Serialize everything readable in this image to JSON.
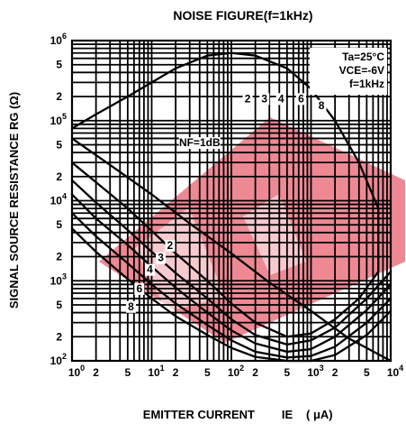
{
  "chart_data": {
    "type": "line",
    "title": "NOISE FIGURE(f=1kHz)",
    "xlabel": "EMITTER CURRENT",
    "xlabel_symbol": "IE",
    "xlabel_unit": "( μA)",
    "ylabel": "SIGNAL SOURCE RESISTANCE RG (Ω)",
    "x_scale": "log",
    "y_scale": "log",
    "xlim": [
      1,
      10000
    ],
    "ylim": [
      100,
      1000000
    ],
    "grid": true,
    "x_tick_labels": [
      {
        "v": 1,
        "base": "10",
        "exp": "0"
      },
      {
        "v": 2,
        "base": "2",
        "exp": ""
      },
      {
        "v": 5,
        "base": "5",
        "exp": ""
      },
      {
        "v": 10,
        "base": "10",
        "exp": "1"
      },
      {
        "v": 20,
        "base": "2",
        "exp": ""
      },
      {
        "v": 50,
        "base": "5",
        "exp": ""
      },
      {
        "v": 100,
        "base": "10",
        "exp": "2"
      },
      {
        "v": 200,
        "base": "2",
        "exp": ""
      },
      {
        "v": 500,
        "base": "5",
        "exp": ""
      },
      {
        "v": 1000,
        "base": "10",
        "exp": "3"
      },
      {
        "v": 2000,
        "base": "2",
        "exp": ""
      },
      {
        "v": 5000,
        "base": "5",
        "exp": ""
      },
      {
        "v": 10000,
        "base": "10",
        "exp": "4"
      }
    ],
    "y_tick_labels": [
      {
        "v": 1000000,
        "base": "10",
        "exp": "6"
      },
      {
        "v": 500000,
        "base": "5",
        "exp": ""
      },
      {
        "v": 200000,
        "base": "2",
        "exp": ""
      },
      {
        "v": 100000,
        "base": "10",
        "exp": "5"
      },
      {
        "v": 50000,
        "base": "5",
        "exp": ""
      },
      {
        "v": 20000,
        "base": "2",
        "exp": ""
      },
      {
        "v": 10000,
        "base": "10",
        "exp": "4"
      },
      {
        "v": 5000,
        "base": "5",
        "exp": ""
      },
      {
        "v": 2000,
        "base": "2",
        "exp": ""
      },
      {
        "v": 1000,
        "base": "10",
        "exp": "3"
      },
      {
        "v": 500,
        "base": "5",
        "exp": ""
      },
      {
        "v": 200,
        "base": "2",
        "exp": ""
      },
      {
        "v": 100,
        "base": "10",
        "exp": "2"
      }
    ],
    "conditions": [
      "Ta=25°C",
      "VCE=-6V",
      "f=1kHz"
    ],
    "series": [
      {
        "name": "NF=1dB",
        "x": [
          1,
          3,
          10,
          30,
          100,
          300,
          1000,
          3000,
          10000
        ],
        "y": [
          60000,
          28000,
          12000,
          5200,
          2200,
          950,
          420,
          190,
          100
        ]
      },
      {
        "name": "2",
        "x": [
          1,
          2,
          5,
          10,
          20,
          50,
          100,
          200,
          500,
          1000,
          2000,
          4000,
          7000,
          7000,
          4000,
          2000,
          1000,
          500,
          200,
          100,
          50,
          20,
          10,
          5,
          2,
          1
        ],
        "y": [
          30000,
          17000,
          8000,
          4200,
          2200,
          1000,
          520,
          300,
          200,
          220,
          330,
          600,
          1300,
          8000,
          30000,
          100000,
          250000,
          450000,
          650000,
          700000,
          650000,
          450000,
          300000,
          200000,
          120000,
          80000
        ]
      },
      {
        "name": "3",
        "x": [
          1,
          2,
          5,
          10,
          20,
          50,
          100,
          200,
          500,
          1000,
          2000,
          5000,
          10000
        ],
        "y": [
          18000,
          9500,
          4300,
          2300,
          1250,
          600,
          330,
          210,
          160,
          180,
          260,
          600,
          1300
        ]
      },
      {
        "name": "4",
        "x": [
          1,
          2,
          5,
          10,
          20,
          50,
          100,
          200,
          500,
          1000,
          2000,
          5000,
          10000
        ],
        "y": [
          12000,
          6000,
          2800,
          1500,
          820,
          400,
          240,
          165,
          130,
          140,
          200,
          430,
          900
        ]
      },
      {
        "name": "6",
        "x": [
          1,
          2,
          5,
          10,
          20,
          50,
          100,
          200,
          500,
          1000,
          2000,
          5000,
          10000
        ],
        "y": [
          7000,
          3600,
          1650,
          900,
          520,
          280,
          180,
          130,
          110,
          115,
          150,
          300,
          600
        ]
      },
      {
        "name": "8",
        "x": [
          1,
          2,
          5,
          10,
          20,
          50,
          100,
          200,
          500,
          1000,
          2000,
          5000,
          10000
        ],
        "y": [
          4500,
          2300,
          1050,
          600,
          360,
          210,
          145,
          112,
          100,
          100,
          118,
          210,
          420
        ]
      }
    ],
    "curve_labels": [
      {
        "text": "NF=1dB",
        "x": 40,
        "y": 48000
      },
      {
        "text": "2",
        "x": 17,
        "y": 2500
      },
      {
        "text": "3",
        "x": 13,
        "y": 1750
      },
      {
        "text": "4",
        "x": 9.5,
        "y": 1250
      },
      {
        "text": "6",
        "x": 7,
        "y": 720
      },
      {
        "text": "8",
        "x": 5.5,
        "y": 430
      },
      {
        "text": "2",
        "x": 160,
        "y": 170000
      },
      {
        "text": "3",
        "x": 260,
        "y": 170000
      },
      {
        "text": "4",
        "x": 420,
        "y": 170000
      },
      {
        "text": "6",
        "x": 750,
        "y": 170000
      },
      {
        "text": "8",
        "x": 1350,
        "y": 140000
      }
    ],
    "colors": {
      "ink": "#000000",
      "watermark": "#e0283c"
    }
  }
}
